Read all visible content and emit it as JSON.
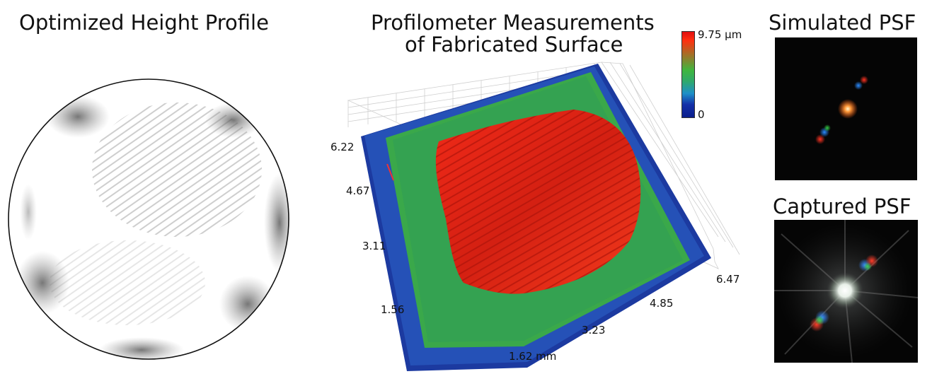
{
  "panels": {
    "height_profile": {
      "title": "Optimized Height Profile"
    },
    "profilometer": {
      "title_line1": "Profilometer Measurements",
      "title_line2": "of Fabricated Surface",
      "colorbar": {
        "max_label": "9.75 µm",
        "min_label": "0"
      },
      "y_ticks": [
        "6.22",
        "4.67",
        "3.11",
        "1.56"
      ],
      "x_ticks": [
        "1.62 mm",
        "3.23",
        "4.85",
        "6.47"
      ]
    },
    "simulated_psf": {
      "title": "Simulated PSF"
    },
    "captured_psf": {
      "title": "Captured PSF"
    }
  },
  "colors": {
    "surface_peak": "#e81e10",
    "surface_mid": "#3aa84a",
    "surface_base": "#1c3aa0",
    "psf_background": "#050505"
  }
}
